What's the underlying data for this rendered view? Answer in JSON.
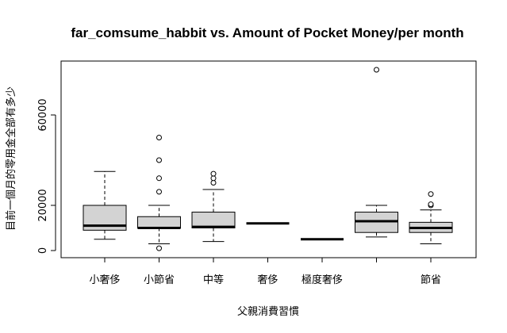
{
  "chart_data": {
    "type": "boxplot",
    "title": "far_comsume_habbit vs. Amount of Pocket Money/per month",
    "xlabel": "父親消費習慣",
    "ylabel": "目前一個月的零用金全部有多少",
    "ylim": [
      0,
      80000
    ],
    "yticks": [
      0,
      20000,
      60000
    ],
    "categories": [
      "小奢侈",
      "小節省",
      "中等",
      "奢侈",
      "極度奢侈",
      "",
      "節省"
    ],
    "boxes": [
      {
        "min": 5000,
        "q1": 9000,
        "median": 11000,
        "q3": 20000,
        "max": 35000,
        "outliers": []
      },
      {
        "min": 3000,
        "q1": 10000,
        "median": 10000,
        "q3": 15000,
        "max": 20000,
        "outliers": [
          1000,
          26000,
          32000,
          40000,
          50000
        ]
      },
      {
        "min": 4000,
        "q1": 10000,
        "median": 10500,
        "q3": 17000,
        "max": 27000,
        "outliers": [
          30000,
          32000,
          34000
        ]
      },
      {
        "min": 12000,
        "q1": 12000,
        "median": 12000,
        "q3": 12000,
        "max": 12000,
        "outliers": []
      },
      {
        "min": 5000,
        "q1": 5000,
        "median": 5000,
        "q3": 5000,
        "max": 5000,
        "outliers": []
      },
      {
        "min": 6000,
        "q1": 8000,
        "median": 13000,
        "q3": 17000,
        "max": 20000,
        "outliers": [
          80000
        ]
      },
      {
        "min": 3000,
        "q1": 8000,
        "median": 10000,
        "q3": 12500,
        "max": 18000,
        "outliers": [
          20000,
          20500,
          25000
        ]
      }
    ],
    "box_color": "#d3d3d3",
    "grid": false,
    "legend": "none"
  }
}
